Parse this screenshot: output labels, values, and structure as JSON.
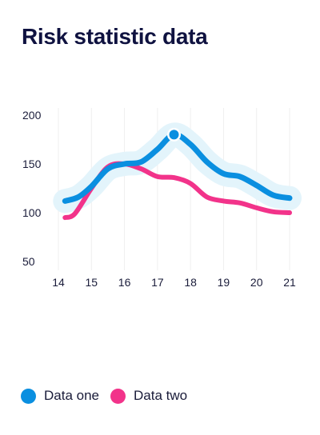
{
  "title": "Risk statistic data",
  "colors": {
    "series_one": "#0a8fe0",
    "series_two": "#f2338a",
    "halo": "#e3f4fb",
    "grid": "#efefef",
    "text": "#1a1c3a"
  },
  "chart_data": {
    "type": "line",
    "title": "Risk statistic data",
    "xlabel": "",
    "ylabel": "",
    "xlim": [
      14,
      21
    ],
    "ylim": [
      50,
      200
    ],
    "x_ticks": [
      "14",
      "15",
      "16",
      "17",
      "18",
      "19",
      "20",
      "21"
    ],
    "y_ticks": [
      "200",
      "150",
      "100",
      "50"
    ],
    "grid": "vertical",
    "legend_position": "bottom-left",
    "series": [
      {
        "name": "Data one",
        "x": [
          14.2,
          14.6,
          15,
          15.5,
          16,
          16.5,
          17,
          17.5,
          18,
          18.5,
          19,
          19.5,
          20,
          20.5,
          21
        ],
        "y": [
          112,
          116,
          127,
          145,
          150,
          152,
          165,
          180,
          170,
          152,
          140,
          137,
          128,
          118,
          115
        ],
        "highlight": {
          "x": 17.5,
          "y": 180
        }
      },
      {
        "name": "Data two",
        "x": [
          14.2,
          14.5,
          15,
          15.5,
          16,
          16.5,
          17,
          17.5,
          18,
          18.5,
          19,
          19.5,
          20,
          20.5,
          21
        ],
        "y": [
          95,
          99,
          125,
          147,
          150,
          145,
          137,
          136,
          130,
          116,
          112,
          110,
          105,
          101,
          100
        ]
      }
    ]
  },
  "legend": [
    {
      "label": "Data one"
    },
    {
      "label": "Data two"
    }
  ]
}
